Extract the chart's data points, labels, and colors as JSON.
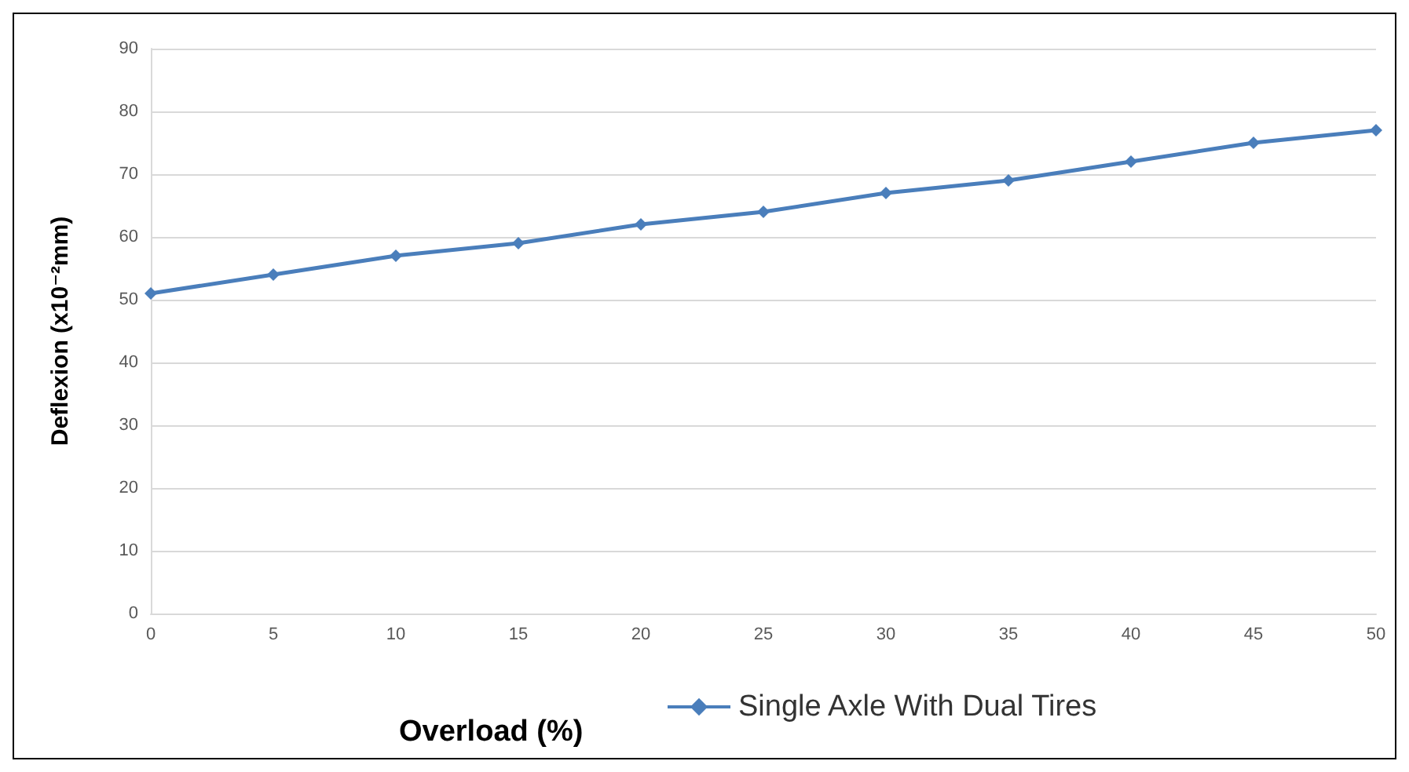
{
  "chart_data": {
    "type": "line",
    "xlabel": "Overload (%)",
    "ylabel": "Deflexion (x10⁻²mm)",
    "x": [
      0,
      5,
      10,
      15,
      20,
      25,
      30,
      35,
      40,
      45,
      50
    ],
    "series": [
      {
        "name": "Single Axle With Dual Tires",
        "color": "#4a7ebb",
        "values": [
          51,
          54,
          57,
          59,
          62,
          64,
          67,
          69,
          72,
          75,
          77
        ]
      }
    ],
    "xlim": [
      0,
      50
    ],
    "xticks": [
      0,
      5,
      10,
      15,
      20,
      25,
      30,
      35,
      40,
      45,
      50
    ],
    "ylim": [
      0,
      90
    ],
    "yticks": [
      0,
      10,
      20,
      30,
      40,
      50,
      60,
      70,
      80,
      90
    ],
    "grid": "y",
    "legend": "bottom",
    "marker": "diamond",
    "line_style": "solid"
  }
}
